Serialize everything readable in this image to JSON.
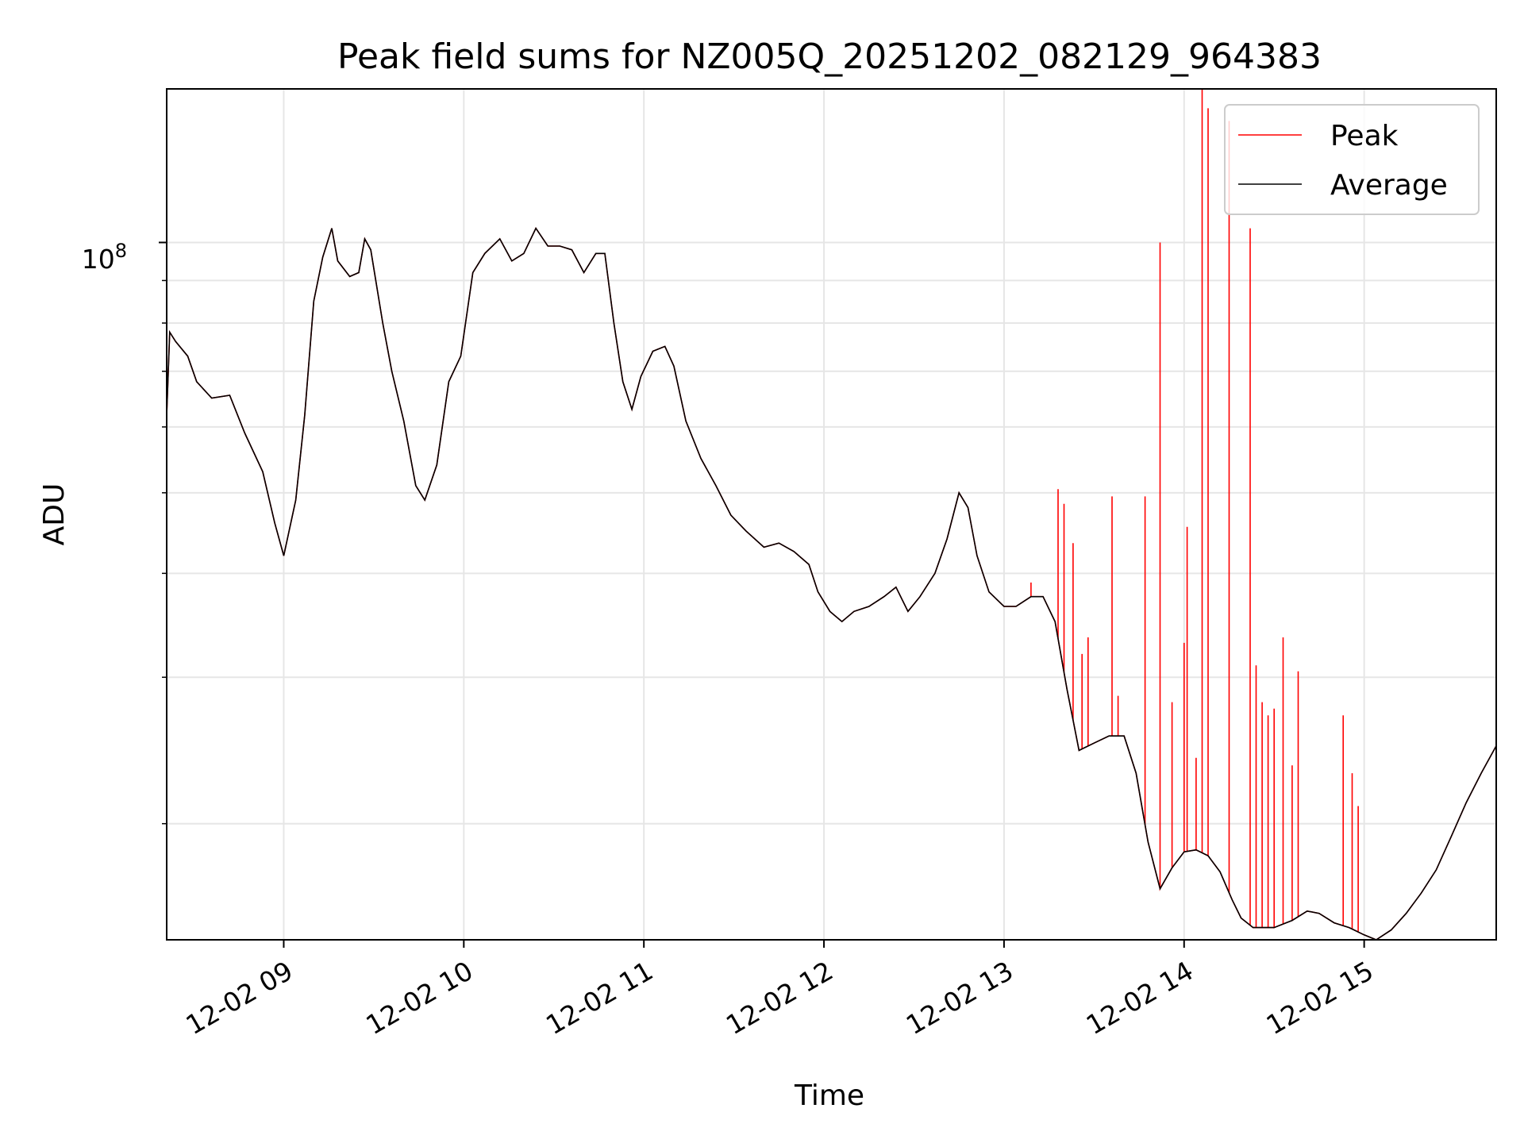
{
  "chart_data": {
    "type": "line",
    "title": "Peak field sums for NZ005Q_20251202_082129_964383",
    "xlabel": "Time",
    "ylabel": "ADU",
    "y_scale": "log",
    "ylim": [
      14500000,
      153000000
    ],
    "xlim": [
      "2025-12-02 08:21",
      "2025-12-02 15:44"
    ],
    "x_ticks": [
      {
        "t": "2025-12-02 09:00",
        "label": "12-02 09"
      },
      {
        "t": "2025-12-02 10:00",
        "label": "12-02 10"
      },
      {
        "t": "2025-12-02 11:00",
        "label": "12-02 11"
      },
      {
        "t": "2025-12-02 12:00",
        "label": "12-02 12"
      },
      {
        "t": "2025-12-02 13:00",
        "label": "12-02 13"
      },
      {
        "t": "2025-12-02 14:00",
        "label": "12-02 14"
      },
      {
        "t": "2025-12-02 15:00",
        "label": "12-02 15"
      }
    ],
    "y_tick_label": {
      "base": "10",
      "exp": "8"
    },
    "grid": true,
    "legend_position": "top-right",
    "series": [
      {
        "name": "Average",
        "color": "#000000",
        "points": [
          [
            "2025-12-02 08:21",
            62000000
          ],
          [
            "2025-12-02 08:22",
            78000000
          ],
          [
            "2025-12-02 08:24",
            76000000
          ],
          [
            "2025-12-02 08:28",
            73000000
          ],
          [
            "2025-12-02 08:31",
            68000000
          ],
          [
            "2025-12-02 08:36",
            65000000
          ],
          [
            "2025-12-02 08:42",
            65500000
          ],
          [
            "2025-12-02 08:47",
            59000000
          ],
          [
            "2025-12-02 08:53",
            53000000
          ],
          [
            "2025-12-02 08:57",
            46000000
          ],
          [
            "2025-12-02 09:00",
            42000000
          ],
          [
            "2025-12-02 09:04",
            49000000
          ],
          [
            "2025-12-02 09:07",
            62000000
          ],
          [
            "2025-12-02 09:10",
            85000000
          ],
          [
            "2025-12-02 09:13",
            96000000
          ],
          [
            "2025-12-02 09:16",
            104000000
          ],
          [
            "2025-12-02 09:18",
            95000000
          ],
          [
            "2025-12-02 09:22",
            91000000
          ],
          [
            "2025-12-02 09:25",
            92000000
          ],
          [
            "2025-12-02 09:27",
            101000000
          ],
          [
            "2025-12-02 09:29",
            98000000
          ],
          [
            "2025-12-02 09:33",
            80000000
          ],
          [
            "2025-12-02 09:36",
            70000000
          ],
          [
            "2025-12-02 09:40",
            61000000
          ],
          [
            "2025-12-02 09:44",
            51000000
          ],
          [
            "2025-12-02 09:47",
            49000000
          ],
          [
            "2025-12-02 09:51",
            54000000
          ],
          [
            "2025-12-02 09:55",
            68000000
          ],
          [
            "2025-12-02 09:59",
            73000000
          ],
          [
            "2025-12-02 10:03",
            92000000
          ],
          [
            "2025-12-02 10:07",
            97000000
          ],
          [
            "2025-12-02 10:12",
            101000000
          ],
          [
            "2025-12-02 10:16",
            95000000
          ],
          [
            "2025-12-02 10:20",
            97000000
          ],
          [
            "2025-12-02 10:24",
            104000000
          ],
          [
            "2025-12-02 10:28",
            99000000
          ],
          [
            "2025-12-02 10:32",
            99000000
          ],
          [
            "2025-12-02 10:36",
            98000000
          ],
          [
            "2025-12-02 10:40",
            92000000
          ],
          [
            "2025-12-02 10:44",
            97000000
          ],
          [
            "2025-12-02 10:47",
            97000000
          ],
          [
            "2025-12-02 10:50",
            80000000
          ],
          [
            "2025-12-02 10:53",
            68000000
          ],
          [
            "2025-12-02 10:56",
            63000000
          ],
          [
            "2025-12-02 10:59",
            69000000
          ],
          [
            "2025-12-02 11:03",
            74000000
          ],
          [
            "2025-12-02 11:07",
            75000000
          ],
          [
            "2025-12-02 11:10",
            71000000
          ],
          [
            "2025-12-02 11:14",
            61000000
          ],
          [
            "2025-12-02 11:19",
            55000000
          ],
          [
            "2025-12-02 11:24",
            51000000
          ],
          [
            "2025-12-02 11:29",
            47000000
          ],
          [
            "2025-12-02 11:34",
            45000000
          ],
          [
            "2025-12-02 11:40",
            43000000
          ],
          [
            "2025-12-02 11:45",
            43500000
          ],
          [
            "2025-12-02 11:50",
            42500000
          ],
          [
            "2025-12-02 11:55",
            41000000
          ],
          [
            "2025-12-02 11:58",
            38000000
          ],
          [
            "2025-12-02 12:02",
            36000000
          ],
          [
            "2025-12-02 12:06",
            35000000
          ],
          [
            "2025-12-02 12:10",
            36000000
          ],
          [
            "2025-12-02 12:15",
            36500000
          ],
          [
            "2025-12-02 12:20",
            37500000
          ],
          [
            "2025-12-02 12:24",
            38500000
          ],
          [
            "2025-12-02 12:28",
            36000000
          ],
          [
            "2025-12-02 12:32",
            37500000
          ],
          [
            "2025-12-02 12:37",
            40000000
          ],
          [
            "2025-12-02 12:41",
            44000000
          ],
          [
            "2025-12-02 12:45",
            50000000
          ],
          [
            "2025-12-02 12:48",
            48000000
          ],
          [
            "2025-12-02 12:51",
            42000000
          ],
          [
            "2025-12-02 12:55",
            38000000
          ],
          [
            "2025-12-02 13:00",
            36500000
          ],
          [
            "2025-12-02 13:04",
            36500000
          ],
          [
            "2025-12-02 13:09",
            37500000
          ],
          [
            "2025-12-02 13:13",
            37500000
          ],
          [
            "2025-12-02 13:17",
            35000000
          ],
          [
            "2025-12-02 13:21",
            29000000
          ],
          [
            "2025-12-02 13:25",
            24500000
          ],
          [
            "2025-12-02 13:30",
            25000000
          ],
          [
            "2025-12-02 13:35",
            25500000
          ],
          [
            "2025-12-02 13:40",
            25500000
          ],
          [
            "2025-12-02 13:44",
            23000000
          ],
          [
            "2025-12-02 13:48",
            19000000
          ],
          [
            "2025-12-02 13:52",
            16700000
          ],
          [
            "2025-12-02 13:56",
            17700000
          ],
          [
            "2025-12-02 14:00",
            18500000
          ],
          [
            "2025-12-02 14:04",
            18600000
          ],
          [
            "2025-12-02 14:08",
            18300000
          ],
          [
            "2025-12-02 14:12",
            17500000
          ],
          [
            "2025-12-02 14:16",
            16200000
          ],
          [
            "2025-12-02 14:19",
            15400000
          ],
          [
            "2025-12-02 14:23",
            15000000
          ],
          [
            "2025-12-02 14:30",
            15000000
          ],
          [
            "2025-12-02 14:36",
            15300000
          ],
          [
            "2025-12-02 14:41",
            15700000
          ],
          [
            "2025-12-02 14:45",
            15600000
          ],
          [
            "2025-12-02 14:50",
            15200000
          ],
          [
            "2025-12-02 14:55",
            15000000
          ],
          [
            "2025-12-02 15:00",
            14700000
          ],
          [
            "2025-12-02 15:04",
            14500000
          ],
          [
            "2025-12-02 15:09",
            14900000
          ],
          [
            "2025-12-02 15:14",
            15600000
          ],
          [
            "2025-12-02 15:19",
            16500000
          ],
          [
            "2025-12-02 15:24",
            17600000
          ],
          [
            "2025-12-02 15:29",
            19300000
          ],
          [
            "2025-12-02 15:34",
            21200000
          ],
          [
            "2025-12-02 15:39",
            23000000
          ],
          [
            "2025-12-02 15:44",
            24800000
          ]
        ]
      },
      {
        "name": "Peak",
        "color": "#ff0000",
        "spikes": [
          [
            "2025-12-02 13:09",
            39000000
          ],
          [
            "2025-12-02 13:18",
            50500000
          ],
          [
            "2025-12-02 13:20",
            48500000
          ],
          [
            "2025-12-02 13:23",
            43500000
          ],
          [
            "2025-12-02 13:26",
            32000000
          ],
          [
            "2025-12-02 13:28",
            33500000
          ],
          [
            "2025-12-02 13:36",
            49500000
          ],
          [
            "2025-12-02 13:38",
            28500000
          ],
          [
            "2025-12-02 13:47",
            49500000
          ],
          [
            "2025-12-02 13:52",
            100000000
          ],
          [
            "2025-12-02 13:56",
            28000000
          ],
          [
            "2025-12-02 14:00",
            33000000
          ],
          [
            "2025-12-02 14:01",
            45500000
          ],
          [
            "2025-12-02 14:04",
            24000000
          ],
          [
            "2025-12-02 14:06",
            158000000
          ],
          [
            "2025-12-02 14:08",
            145000000
          ],
          [
            "2025-12-02 14:15",
            140000000
          ],
          [
            "2025-12-02 14:22",
            104000000
          ],
          [
            "2025-12-02 14:24",
            31000000
          ],
          [
            "2025-12-02 14:26",
            28000000
          ],
          [
            "2025-12-02 14:28",
            27000000
          ],
          [
            "2025-12-02 14:30",
            27500000
          ],
          [
            "2025-12-02 14:33",
            33500000
          ],
          [
            "2025-12-02 14:36",
            23500000
          ],
          [
            "2025-12-02 14:38",
            30500000
          ],
          [
            "2025-12-02 14:53",
            27000000
          ],
          [
            "2025-12-02 14:56",
            23000000
          ],
          [
            "2025-12-02 14:58",
            21000000
          ]
        ]
      }
    ]
  }
}
